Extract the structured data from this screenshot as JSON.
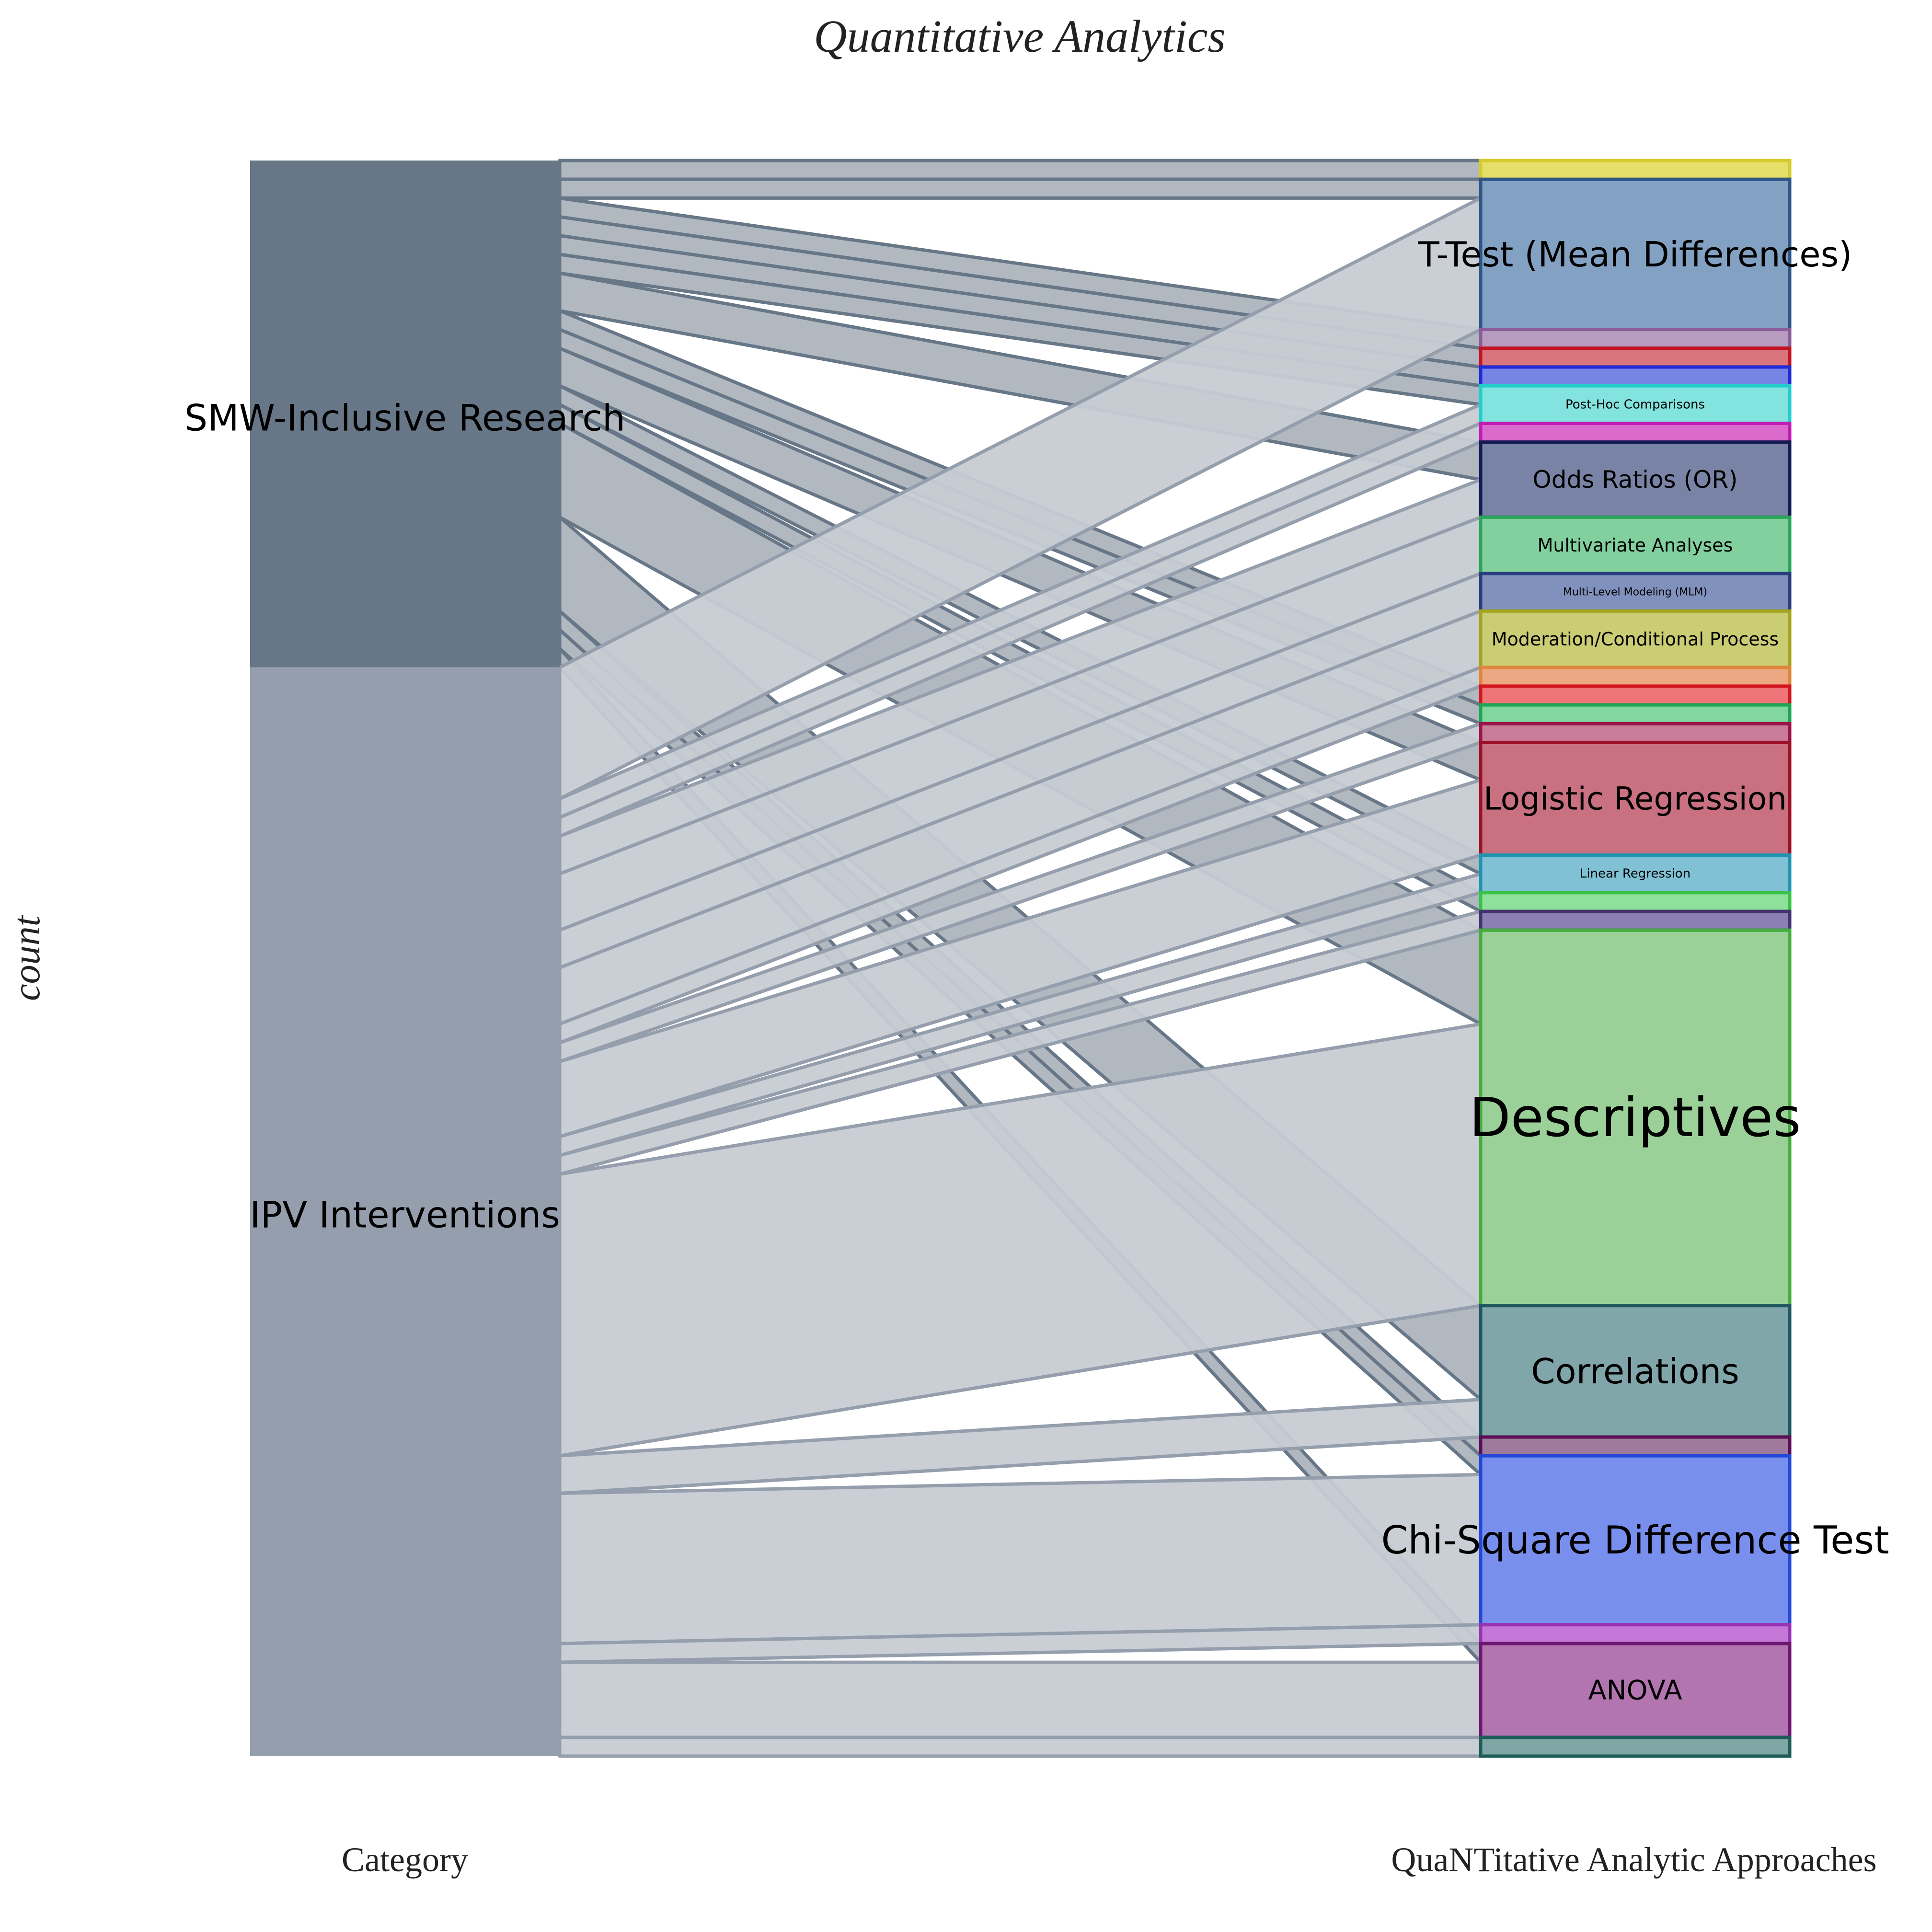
{
  "chart_data": {
    "type": "alluvial",
    "title": "Quantitative Analytics",
    "ylabel": "count",
    "axes": [
      "Category",
      "QuaNTitative Analytic Approaches"
    ],
    "left_nodes": [
      {
        "name": "SMW-Inclusive Research",
        "color": "#677787"
      },
      {
        "name": "IPV Interventions",
        "color": "#959EAC"
      }
    ],
    "right_nodes": [
      {
        "name": "",
        "label_shown": false,
        "color": "#E6DF69",
        "border": "#D5CB2E"
      },
      {
        "name": "T-Test (Mean Differences)",
        "color": "#82A1C3",
        "border": "#2F5585"
      },
      {
        "name": "",
        "label_shown": false,
        "color": "#B79CC0",
        "border": "#8A5C9A"
      },
      {
        "name": "",
        "label_shown": false,
        "color": "#D9767D",
        "border": "#C41322"
      },
      {
        "name": "",
        "label_shown": false,
        "color": "#7884E5",
        "border": "#1D2AD6"
      },
      {
        "name": "Post-Hoc Comparisons",
        "color": "#83E3DE",
        "border": "#22CECB"
      },
      {
        "name": "",
        "label_shown": false,
        "color": "#DA6ACB",
        "border": "#C01CB3"
      },
      {
        "name": "Odds Ratios (OR)",
        "color": "#7983A5",
        "border": "#141B52"
      },
      {
        "name": "Multivariate Analyses",
        "color": "#82D09E",
        "border": "#2BA55A"
      },
      {
        "name": "Multi-Level Modeling (MLM)",
        "color": "#8191BE",
        "border": "#293D7E"
      },
      {
        "name": "Moderation/Conditional Process",
        "color": "#CACD74",
        "border": "#A6A31F"
      },
      {
        "name": "",
        "label_shown": false,
        "color": "#EBA882",
        "border": "#E0853B"
      },
      {
        "name": "",
        "label_shown": false,
        "color": "#EF7578",
        "border": "#D4141E"
      },
      {
        "name": "",
        "label_shown": false,
        "color": "#82D6A0",
        "border": "#20A455"
      },
      {
        "name": "",
        "label_shown": false,
        "color": "#C87C98",
        "border": "#9B1347"
      },
      {
        "name": "Logistic Regression",
        "color": "#C97181",
        "border": "#9C1027"
      },
      {
        "name": "Linear Regression",
        "color": "#80C1D5",
        "border": "#2193B1"
      },
      {
        "name": "",
        "label_shown": false,
        "color": "#8EE19A",
        "border": "#38C346"
      },
      {
        "name": "",
        "label_shown": false,
        "color": "#8B80B3",
        "border": "#43336F"
      },
      {
        "name": "Descriptives",
        "color": "#9BD198",
        "border": "#45AC3E"
      },
      {
        "name": "Correlations",
        "color": "#80A6AA",
        "border": "#1E5760"
      },
      {
        "name": "",
        "label_shown": false,
        "color": "#A07A9D",
        "border": "#5A0E55"
      },
      {
        "name": "Chi-Square Difference Test",
        "color": "#798FED",
        "border": "#2347D9"
      },
      {
        "name": "",
        "label_shown": false,
        "color": "#C578D8",
        "border": "#9833B4"
      },
      {
        "name": "ANOVA",
        "color": "#B275B0",
        "border": "#6D1772"
      },
      {
        "name": "",
        "label_shown": false,
        "color": "#7EA7A5",
        "border": "#1D5C59"
      }
    ],
    "right_values": [
      1,
      8,
      1,
      1,
      1,
      2,
      1,
      4,
      3,
      2,
      3,
      1,
      1,
      1,
      1,
      6,
      2,
      1,
      1,
      20,
      7,
      1,
      9,
      1,
      5,
      1
    ],
    "flows": [
      {
        "source": 0,
        "target": 0,
        "value": 1
      },
      {
        "source": 0,
        "target": 1,
        "value": 1
      },
      {
        "source": 0,
        "target": 2,
        "value": 1
      },
      {
        "source": 0,
        "target": 3,
        "value": 1
      },
      {
        "source": 0,
        "target": 4,
        "value": 1
      },
      {
        "source": 0,
        "target": 5,
        "value": 1
      },
      {
        "source": 0,
        "target": 7,
        "value": 2
      },
      {
        "source": 0,
        "target": 12,
        "value": 1
      },
      {
        "source": 0,
        "target": 13,
        "value": 1
      },
      {
        "source": 0,
        "target": 15,
        "value": 2
      },
      {
        "source": 0,
        "target": 16,
        "value": 1
      },
      {
        "source": 0,
        "target": 17,
        "value": 1
      },
      {
        "source": 0,
        "target": 19,
        "value": 5
      },
      {
        "source": 0,
        "target": 20,
        "value": 5
      },
      {
        "source": 0,
        "target": 21,
        "value": 1
      },
      {
        "source": 0,
        "target": 22,
        "value": 1
      },
      {
        "source": 0,
        "target": 24,
        "value": 1
      },
      {
        "source": 1,
        "target": 1,
        "value": 7
      },
      {
        "source": 1,
        "target": 5,
        "value": 1
      },
      {
        "source": 1,
        "target": 6,
        "value": 1
      },
      {
        "source": 1,
        "target": 7,
        "value": 2
      },
      {
        "source": 1,
        "target": 8,
        "value": 3
      },
      {
        "source": 1,
        "target": 9,
        "value": 2
      },
      {
        "source": 1,
        "target": 10,
        "value": 3
      },
      {
        "source": 1,
        "target": 11,
        "value": 1
      },
      {
        "source": 1,
        "target": 14,
        "value": 1
      },
      {
        "source": 1,
        "target": 15,
        "value": 4
      },
      {
        "source": 1,
        "target": 16,
        "value": 1
      },
      {
        "source": 1,
        "target": 18,
        "value": 1
      },
      {
        "source": 1,
        "target": 19,
        "value": 15
      },
      {
        "source": 1,
        "target": 20,
        "value": 2
      },
      {
        "source": 1,
        "target": 22,
        "value": 8
      },
      {
        "source": 1,
        "target": 23,
        "value": 1
      },
      {
        "source": 1,
        "target": 24,
        "value": 4
      },
      {
        "source": 1,
        "target": 25,
        "value": 1
      }
    ]
  }
}
